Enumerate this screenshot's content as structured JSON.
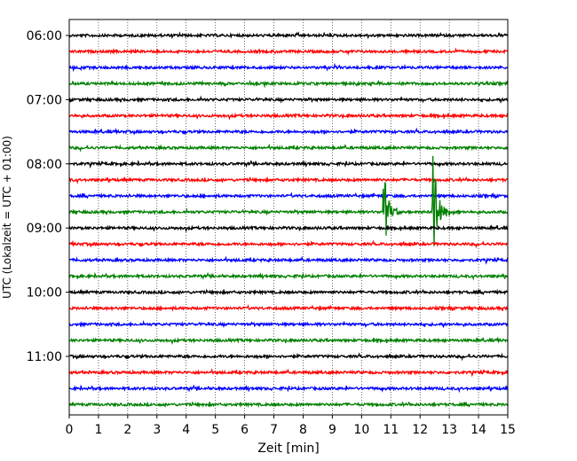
{
  "chart_data": {
    "type": "line",
    "title": "",
    "xlabel": "Zeit  [min]",
    "ylabel": "UTC (Lokalzeit = UTC + 01:00)",
    "xlim": [
      0,
      15
    ],
    "x_ticks": [
      "0",
      "1",
      "2",
      "3",
      "4",
      "5",
      "6",
      "7",
      "8",
      "9",
      "10",
      "11",
      "12",
      "13",
      "14",
      "15"
    ],
    "y_ticks": [
      "06:00",
      "07:00",
      "08:00",
      "09:00",
      "10:00",
      "11:00"
    ],
    "grid": "vertical dotted",
    "trace_interval_minutes": 15,
    "traces_count": 24,
    "first_trace_time": "06:00",
    "trace_colors": [
      "#000000",
      "#ff0000",
      "#0000ff",
      "#008000"
    ],
    "events": [
      {
        "trace_time": "08:45",
        "start_min": 10.7,
        "peak_amplitude_traces": 3.5,
        "color": "#008000"
      },
      {
        "trace_time": "08:45",
        "start_min": 12.4,
        "peak_amplitude_traces": 5.8,
        "color": "#008000"
      }
    ]
  }
}
